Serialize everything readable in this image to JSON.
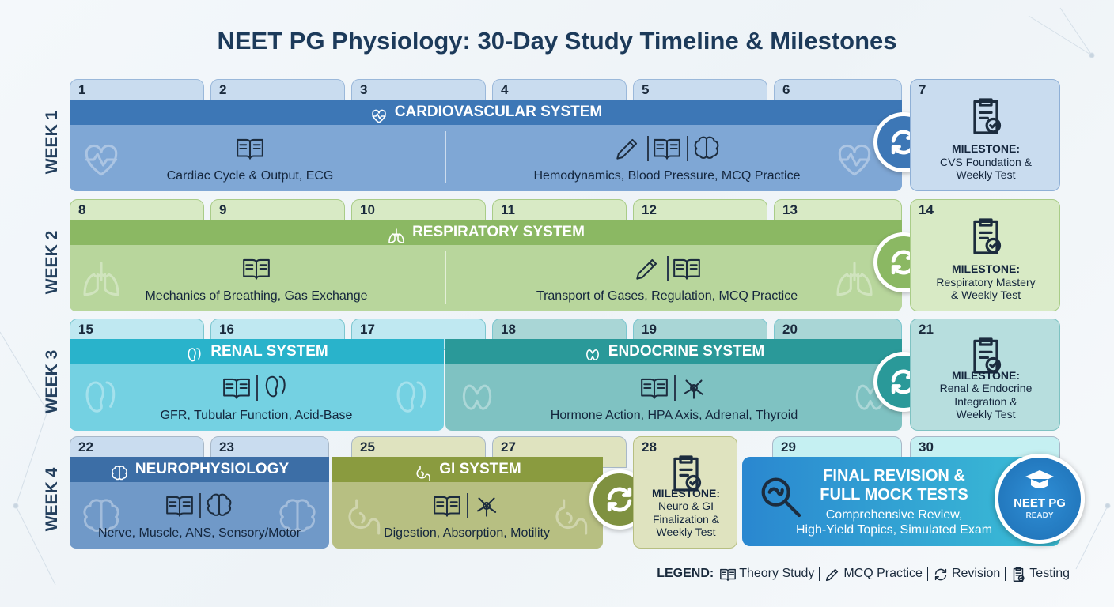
{
  "title": "NEET PG Physiology: 30-Day Study Timeline & Milestones",
  "weeks": [
    {
      "label": "WEEK 1",
      "days": [
        "1",
        "2",
        "3",
        "4",
        "5",
        "6",
        "7"
      ],
      "systems": [
        {
          "name": "CARDIOVASCULAR SYSTEM",
          "topics": [
            "Cardiac Cycle & Output, ECG",
            "Hemodynamics, Blood Pressure, MCQ Practice"
          ]
        }
      ],
      "milestone": [
        "MILESTONE:",
        "CVS Foundation &",
        "Weekly Test"
      ]
    },
    {
      "label": "WEEK 2",
      "days": [
        "8",
        "9",
        "10",
        "11",
        "12",
        "13",
        "14"
      ],
      "systems": [
        {
          "name": "RESPIRATORY SYSTEM",
          "topics": [
            "Mechanics of Breathing, Gas Exchange",
            "Transport of Gases, Regulation, MCQ Practice"
          ]
        }
      ],
      "milestone": [
        "MILESTONE:",
        "Respiratory Mastery",
        "& Weekly Test"
      ]
    },
    {
      "label": "WEEK 3",
      "days": [
        "15",
        "16",
        "17",
        "18",
        "19",
        "20",
        "21"
      ],
      "systems": [
        {
          "name": "RENAL SYSTEM",
          "topics": [
            "GFR, Tubular Function, Acid-Base"
          ]
        },
        {
          "name": "ENDOCRINE SYSTEM",
          "topics": [
            "Hormone Action, HPA Axis, Adrenal, Thyroid"
          ]
        }
      ],
      "milestone": [
        "MILESTONE:",
        "Renal & Endocrine",
        "Integration &",
        "Weekly Test"
      ]
    },
    {
      "label": "WEEK 4",
      "days": [
        "22",
        "23",
        "25",
        "27",
        "28",
        "29",
        "30"
      ],
      "systems": [
        {
          "name": "NEUROPHYSIOLOGY",
          "topics": [
            "Nerve, Muscle, ANS, Sensory/Motor"
          ]
        },
        {
          "name": "GI SYSTEM",
          "topics": [
            "Digestion, Absorption, Motility"
          ]
        }
      ],
      "milestone": [
        "MILESTONE:",
        "Neuro & GI",
        "Finalization &",
        "Weekly Test"
      ]
    }
  ],
  "final": {
    "title": [
      "FINAL REVISION &",
      "FULL MOCK TESTS"
    ],
    "text": [
      "Comprehensive Review,",
      "High-Yield Topics, Simulated Exam"
    ],
    "badge": [
      "NEET PG",
      "READY"
    ]
  },
  "legend": {
    "label": "LEGEND:",
    "items": [
      "Theory Study",
      "MCQ Practice",
      "Revision",
      "Testing"
    ]
  }
}
